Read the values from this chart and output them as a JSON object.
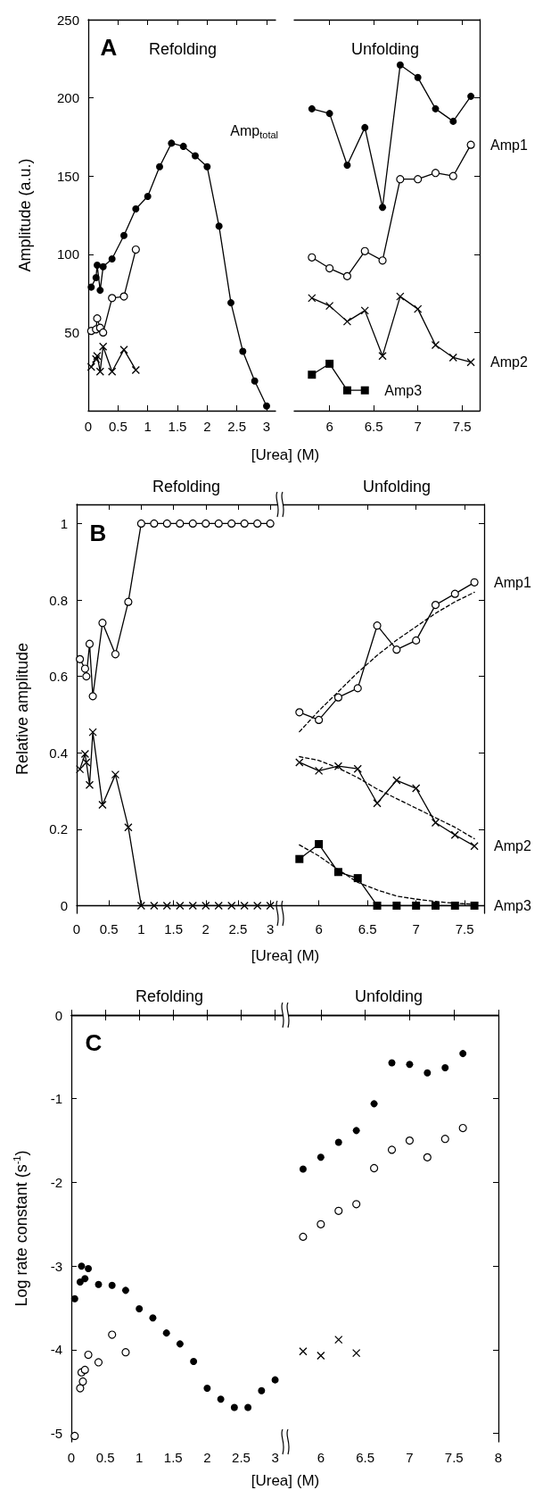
{
  "chart_data": [
    {
      "type": "line",
      "title": "Refolding",
      "xlabel": "[Urea] (M)",
      "ylabel": "Amplitude (a.u.)",
      "annotations": [
        "A"
      ],
      "xlim": [
        0,
        3.15
      ],
      "xticks": [
        0,
        0.5,
        1,
        1.5,
        2,
        2.5,
        3
      ],
      "ylim": [
        0,
        250
      ],
      "yticks": [
        50,
        100,
        150,
        200,
        250
      ],
      "series": [
        {
          "name": "Amp$_{total}$",
          "color": "#000000",
          "marker": "circle",
          "x": [
            0.05,
            0.13,
            0.15,
            0.2,
            0.25,
            0.4,
            0.6,
            0.8,
            1,
            1.2,
            1.4,
            1.6,
            1.8,
            2,
            2.2,
            2.4,
            2.6,
            2.8,
            3
          ],
          "values": [
            79,
            85,
            93,
            77,
            92,
            97,
            112,
            129,
            137,
            156,
            171,
            169,
            163,
            156,
            118,
            69,
            38,
            19,
            3
          ]
        },
        {
          "color": "#000000",
          "marker": "circle-open",
          "x": [
            0.05,
            0.13,
            0.15,
            0.2,
            0.25,
            0.4,
            0.6,
            0.8
          ],
          "values": [
            51,
            52,
            59,
            53,
            50,
            72,
            73,
            103
          ]
        },
        {
          "color": "#000000",
          "marker": "cross",
          "x": [
            0.05,
            0.13,
            0.15,
            0.2,
            0.25,
            0.4,
            0.6,
            0.8
          ],
          "values": [
            28,
            33,
            35,
            25,
            41,
            25,
            39,
            26
          ]
        }
      ]
    },
    {
      "type": "line",
      "title": "Unfolding",
      "xlim": [
        5.6,
        7.7
      ],
      "xticks": [
        6,
        6.5,
        7,
        7.5
      ],
      "ylim": [
        0,
        250
      ],
      "yticks": [
        50,
        100,
        150,
        200,
        250
      ],
      "tick_labels": "x",
      "series": [
        {
          "color": "#000000",
          "marker": "circle",
          "x": [
            5.8,
            6,
            6.2,
            6.4,
            6.6,
            6.8,
            7,
            7.2,
            7.4,
            7.6
          ],
          "values": [
            193,
            190,
            157,
            181,
            130,
            221,
            213,
            193,
            185,
            201
          ]
        },
        {
          "name": "Amp1",
          "color": "#000000",
          "marker": "circle-open",
          "x": [
            5.8,
            6,
            6.2,
            6.4,
            6.6,
            6.8,
            7,
            7.2,
            7.4,
            7.6
          ],
          "values": [
            98,
            91,
            86,
            102,
            96,
            148,
            148,
            152,
            150,
            170
          ]
        },
        {
          "name": "Amp2",
          "color": "#000000",
          "marker": "cross",
          "x": [
            5.8,
            6,
            6.2,
            6.4,
            6.6,
            6.8,
            7,
            7.2,
            7.4,
            7.6
          ],
          "values": [
            72,
            67,
            57,
            64,
            35,
            73,
            65,
            42,
            34,
            31
          ]
        },
        {
          "name": "Amp3",
          "color": "#000000",
          "marker": "square",
          "x": [
            5.8,
            6,
            6.2,
            6.4
          ],
          "values": [
            23,
            30,
            13,
            13
          ]
        }
      ]
    },
    {
      "type": "line",
      "title": "Refolding",
      "xlabel": "[Urea] (M)",
      "ylabel": "Relative amplitude",
      "annotations": [
        "B"
      ],
      "xlim": [
        0,
        3.15
      ],
      "xticks": [
        0,
        0.5,
        1,
        1.5,
        2,
        2.5,
        3
      ],
      "ylim": [
        -0.02,
        1.05
      ],
      "yticks": [
        0,
        0.2,
        0.4,
        0.6,
        0.8,
        1
      ],
      "series": [
        {
          "color": "#000000",
          "marker": "circle-open",
          "x": [
            0.05,
            0.13,
            0.15,
            0.2,
            0.25,
            0.4,
            0.6,
            0.8,
            1,
            1.2,
            1.4,
            1.6,
            1.8,
            2,
            2.2,
            2.4,
            2.6,
            2.8,
            3
          ],
          "values": [
            0.645,
            0.62,
            0.6,
            0.685,
            0.548,
            0.74,
            0.658,
            0.795,
            1,
            1,
            1,
            1,
            1,
            1,
            1,
            1,
            1,
            1,
            1
          ]
        },
        {
          "color": "#000000",
          "marker": "cross",
          "x": [
            0.05,
            0.13,
            0.15,
            0.2,
            0.25,
            0.4,
            0.6,
            0.8,
            1,
            1.2,
            1.4,
            1.6,
            1.8,
            2,
            2.2,
            2.4,
            2.6,
            2.8,
            3
          ],
          "values": [
            0.357,
            0.397,
            0.375,
            0.316,
            0.454,
            0.264,
            0.343,
            0.205,
            0,
            0,
            0,
            0,
            0,
            0,
            0,
            0,
            0,
            0,
            0
          ]
        }
      ]
    },
    {
      "type": "line",
      "title": "Unfolding",
      "xlim": [
        5.6,
        7.7
      ],
      "xticks": [
        6,
        6.5,
        7,
        7.5
      ],
      "ylim": [
        -0.02,
        1.05
      ],
      "yticks": [
        0,
        0.2,
        0.4,
        0.6,
        0.8,
        1
      ],
      "tick_labels": "x",
      "series": [
        {
          "color": "#000000",
          "marker": "none",
          "line_style": "dashed",
          "x": [
            5.8,
            6,
            6.2,
            6.4,
            6.6,
            6.8,
            7,
            7.2,
            7.4,
            7.6
          ],
          "values": [
            0.455,
            0.51,
            0.56,
            0.61,
            0.655,
            0.695,
            0.73,
            0.765,
            0.795,
            0.82
          ]
        },
        {
          "color": "#000000",
          "marker": "none",
          "line_style": "dashed",
          "x": [
            5.8,
            6,
            6.2,
            6.4,
            6.6,
            6.8,
            7,
            7.2,
            7.4,
            7.6
          ],
          "values": [
            0.39,
            0.38,
            0.36,
            0.335,
            0.305,
            0.28,
            0.255,
            0.23,
            0.205,
            0.175
          ]
        },
        {
          "color": "#000000",
          "marker": "none",
          "line_style": "dashed",
          "x": [
            5.8,
            6,
            6.2,
            6.4,
            6.6,
            6.8,
            7,
            7.2,
            7.4,
            7.6
          ],
          "values": [
            0.159,
            0.13,
            0.094,
            0.061,
            0.041,
            0.025,
            0.017,
            0.011,
            0.006,
            0.004
          ]
        },
        {
          "name": "Amp1",
          "color": "#000000",
          "marker": "circle-open",
          "x": [
            5.8,
            6,
            6.2,
            6.4,
            6.6,
            6.8,
            7,
            7.2,
            7.4,
            7.6
          ],
          "values": [
            0.506,
            0.486,
            0.545,
            0.569,
            0.733,
            0.67,
            0.694,
            0.787,
            0.816,
            0.846
          ]
        },
        {
          "name": "Amp2",
          "color": "#000000",
          "marker": "cross",
          "x": [
            5.8,
            6,
            6.2,
            6.4,
            6.6,
            6.8,
            7,
            7.2,
            7.4,
            7.6
          ],
          "values": [
            0.375,
            0.353,
            0.365,
            0.358,
            0.268,
            0.328,
            0.307,
            0.217,
            0.185,
            0.156
          ]
        },
        {
          "name": "Amp3",
          "color": "#000000",
          "marker": "square",
          "x": [
            5.8,
            6,
            6.2,
            6.4,
            6.6,
            6.8,
            7,
            7.2,
            7.4,
            7.6
          ],
          "values": [
            0.122,
            0.161,
            0.088,
            0.072,
            0,
            0,
            0,
            0,
            0,
            0
          ]
        }
      ]
    },
    {
      "type": "scatter",
      "title": "Refolding",
      "xlabel": "[Urea] (M)",
      "ylabel": "Log rate constant (s$^{-1}$)",
      "annotations": [
        "C"
      ],
      "xlim": [
        0,
        3.15
      ],
      "xticks": [
        0,
        0.5,
        1,
        1.5,
        2,
        2.5,
        3
      ],
      "ylim": [
        -5.1,
        0
      ],
      "yticks": [
        0,
        -1,
        -2,
        -3,
        -4,
        -5
      ],
      "series": [
        {
          "color": "#000000",
          "marker": "circle",
          "x": [
            0.05,
            0.13,
            0.15,
            0.2,
            0.25,
            0.4,
            0.6,
            0.8,
            1,
            1.2,
            1.4,
            1.6,
            1.8,
            2,
            2.2,
            2.4,
            2.6,
            2.8,
            3
          ],
          "values": [
            -3.39,
            -3.19,
            -3.0,
            -3.15,
            -3.03,
            -3.22,
            -3.23,
            -3.29,
            -3.51,
            -3.62,
            -3.8,
            -3.93,
            -4.14,
            -4.46,
            -4.59,
            -4.69,
            -4.69,
            -4.49,
            -4.36
          ]
        },
        {
          "color": "#000000",
          "marker": "circle-open",
          "x": [
            0.05,
            0.13,
            0.15,
            0.17,
            0.2,
            0.25,
            0.4,
            0.6,
            0.8
          ],
          "values": [
            -5.03,
            -4.46,
            -4.27,
            -4.38,
            -4.24,
            -4.06,
            -4.15,
            -3.82,
            -4.03
          ]
        }
      ]
    },
    {
      "type": "scatter",
      "title": "Unfolding",
      "xlim": [
        5.6,
        8
      ],
      "xticks": [
        6,
        6.5,
        7,
        7.5,
        8
      ],
      "ylim": [
        -5.1,
        0
      ],
      "yticks": [
        0,
        -1,
        -2,
        -3,
        -4,
        -5
      ],
      "tick_labels": "x",
      "series": [
        {
          "color": "#000000",
          "marker": "circle",
          "x": [
            5.8,
            6,
            6.2,
            6.4,
            6.6,
            6.8,
            7,
            7.2,
            7.4,
            7.6
          ],
          "values": [
            -1.84,
            -1.7,
            -1.52,
            -1.38,
            -1.06,
            -0.57,
            -0.59,
            -0.69,
            -0.63,
            -0.46
          ]
        },
        {
          "color": "#000000",
          "marker": "circle-open",
          "x": [
            5.8,
            6,
            6.2,
            6.4,
            6.6,
            6.8,
            7,
            7.2,
            7.4,
            7.6
          ],
          "values": [
            -2.65,
            -2.5,
            -2.34,
            -2.26,
            -1.83,
            -1.61,
            -1.5,
            -1.7,
            -1.48,
            -1.35
          ]
        },
        {
          "color": "#000000",
          "marker": "cross",
          "x": [
            5.8,
            6,
            6.2,
            6.4
          ],
          "values": [
            -4.02,
            -4.07,
            -3.88,
            -4.04
          ]
        }
      ]
    }
  ]
}
